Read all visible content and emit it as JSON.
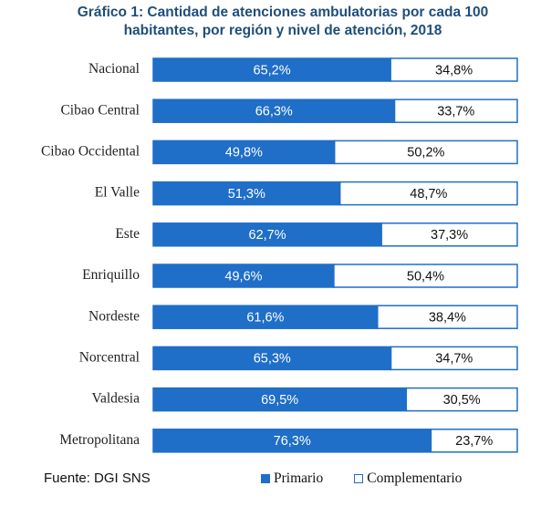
{
  "chart_data": {
    "type": "bar",
    "orientation": "horizontal",
    "stacked": true,
    "title_line1": "Gráfico 1: Cantidad de atenciones ambulatorias por cada 100",
    "title_line2": "habitantes, por región y nivel de atención, 2018",
    "categories": [
      "Nacional",
      "Cibao Central",
      "Cibao Occidental",
      "El Valle",
      "Este",
      "Enriquillo",
      "Nordeste",
      "Norcentral",
      "Valdesia",
      "Metropolitana"
    ],
    "series": [
      {
        "name": "Primario",
        "values": [
          65.2,
          66.3,
          49.8,
          51.3,
          62.7,
          49.6,
          61.6,
          65.3,
          69.5,
          76.3
        ],
        "labels": [
          "65,2%",
          "66,3%",
          "49,8%",
          "51,3%",
          "62,7%",
          "49,6%",
          "61,6%",
          "65,3%",
          "69,5%",
          "76,3%"
        ],
        "color": "#1f6ec8"
      },
      {
        "name": "Complementario",
        "values": [
          34.8,
          33.7,
          50.2,
          48.7,
          37.3,
          50.4,
          38.4,
          34.7,
          30.5,
          23.7
        ],
        "labels": [
          "34,8%",
          "33,7%",
          "50,2%",
          "48,7%",
          "37,3%",
          "50,4%",
          "38,4%",
          "34,7%",
          "30,5%",
          "23,7%"
        ],
        "color": "#ffffff"
      }
    ],
    "xlim": [
      0,
      100
    ],
    "grid": false,
    "legend_position": "bottom"
  },
  "source": "Fuente: DGI SNS",
  "colors": {
    "primary": "#1f6ec8",
    "outline": "#1f6ec8",
    "title": "#1f4e79"
  }
}
